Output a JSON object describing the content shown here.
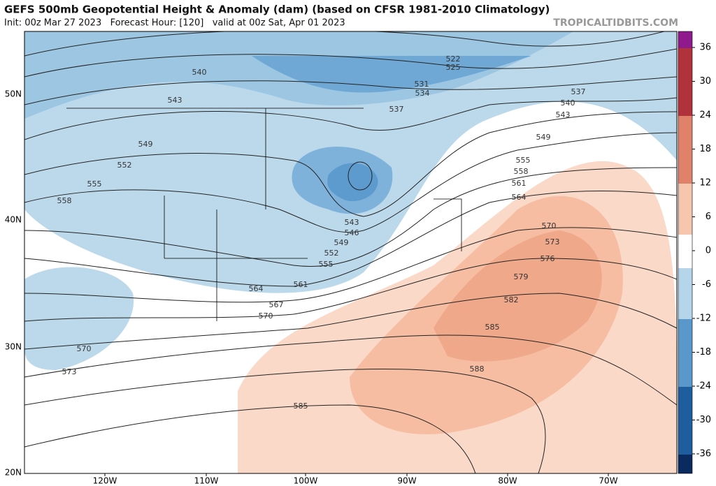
{
  "header": {
    "title": "GEFS 500mb Geopotential Height & Anomaly (dam) (based on CFSR 1981-2010 Climatology)",
    "subtitle": "Init: 00z Mar 27 2023   Forecast Hour: [120]   valid at 00z Sat, Apr 01 2023",
    "watermark": "TROPICALTIDBITS.COM"
  },
  "map": {
    "lon_labels": [
      "120W",
      "110W",
      "100W",
      "90W",
      "80W",
      "70W"
    ],
    "lat_labels": [
      "50N",
      "40N",
      "30N",
      "20N"
    ],
    "contour_labels": [
      540,
      543,
      549,
      552,
      555,
      558,
      522,
      525,
      531,
      534,
      537,
      537,
      540,
      543,
      549,
      555,
      558,
      561,
      564,
      570,
      573,
      576,
      579,
      582,
      585,
      588,
      543,
      546,
      549,
      552,
      555,
      561,
      564,
      567,
      570,
      570,
      573,
      585
    ]
  },
  "colorbar": {
    "ticks": [
      36,
      30,
      24,
      18,
      12,
      6,
      0,
      -6,
      -12,
      -18,
      -24,
      -30,
      -36
    ]
  }
}
